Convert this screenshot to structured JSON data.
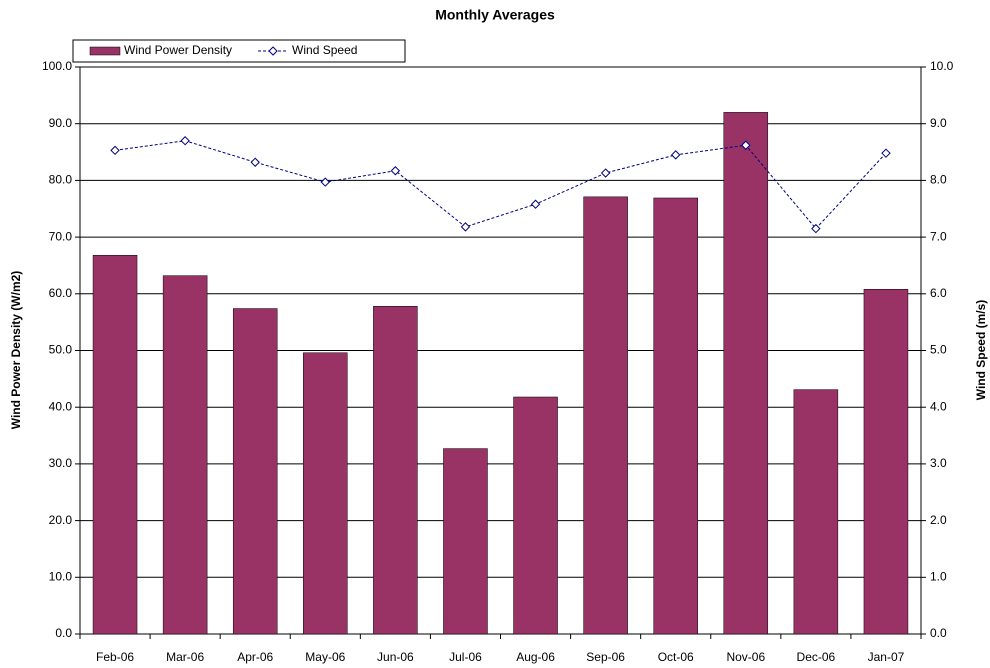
{
  "chart_data": {
    "type": "bar_line",
    "title": "Monthly Averages",
    "categories": [
      "Feb-06",
      "Mar-06",
      "Apr-06",
      "May-06",
      "Jun-06",
      "Jul-06",
      "Aug-06",
      "Sep-06",
      "Oct-06",
      "Nov-06",
      "Dec-06",
      "Jan-07"
    ],
    "series": [
      {
        "name": "Wind Power Density",
        "type": "bar",
        "color": "#993366",
        "values": [
          66.8,
          63.2,
          57.4,
          49.6,
          57.8,
          32.7,
          41.8,
          77.1,
          76.9,
          92.0,
          43.1,
          60.8
        ]
      },
      {
        "name": "Wind Speed",
        "type": "line",
        "axis": "y2",
        "color": "#000080",
        "values": [
          8.53,
          8.7,
          8.32,
          7.97,
          8.17,
          7.18,
          7.58,
          8.13,
          8.45,
          8.62,
          7.15,
          8.48
        ]
      }
    ],
    "ylabel": "Wind Power Density  (W/m2)",
    "y2label": "Wind Speed  (m/s)",
    "ylim": [
      0,
      100
    ],
    "yticks": [
      {
        "value": 0,
        "label": "0.0"
      },
      {
        "value": 10,
        "label": "10.0"
      },
      {
        "value": 20,
        "label": "20.0"
      },
      {
        "value": 30,
        "label": "30.0"
      },
      {
        "value": 40,
        "label": "40.0"
      },
      {
        "value": 50,
        "label": "50.0"
      },
      {
        "value": 60,
        "label": "60.0"
      },
      {
        "value": 70,
        "label": "70.0"
      },
      {
        "value": 80,
        "label": "80.0"
      },
      {
        "value": 90,
        "label": "90.0"
      },
      {
        "value": 100,
        "label": "100.0"
      }
    ],
    "y2lim": [
      0,
      10
    ],
    "y2ticks": [
      {
        "value": 0,
        "label": "0.0"
      },
      {
        "value": 1,
        "label": "1.0"
      },
      {
        "value": 2,
        "label": "2.0"
      },
      {
        "value": 3,
        "label": "3.0"
      },
      {
        "value": 4,
        "label": "4.0"
      },
      {
        "value": 5,
        "label": "5.0"
      },
      {
        "value": 6,
        "label": "6.0"
      },
      {
        "value": 7,
        "label": "7.0"
      },
      {
        "value": 8,
        "label": "8.0"
      },
      {
        "value": 9,
        "label": "9.0"
      },
      {
        "value": 10,
        "label": "10.0"
      }
    ],
    "grid": true
  }
}
